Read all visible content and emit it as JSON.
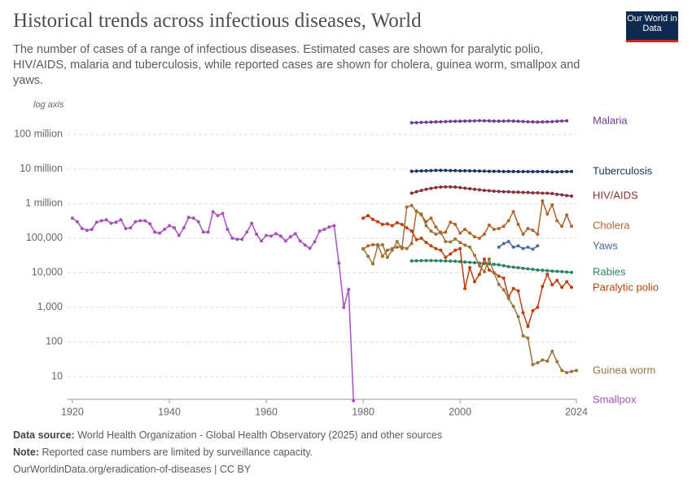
{
  "logo": "Our World in Data",
  "footer": {
    "source_label": "Data source:",
    "source_text": "World Health Organization - Global Health Observatory (2025) and other sources",
    "note_label": "Note:",
    "note_text": "Reported case numbers are limited by surveillance capacity.",
    "url": "OurWorldinData.org/eradication-of-diseases | CC BY"
  },
  "chart_data": {
    "type": "line",
    "title": "Historical trends across infectious diseases, World",
    "subtitle": "The number of cases of a range of infectious diseases. Estimated cases are shown for paralytic polio, HIV/AIDS, malaria and tuberculosis, while reported cases are shown for cholera, guinea worm, smallpox and yaws.",
    "axis_note": "log axis",
    "log_y": true,
    "grid": true,
    "xlim": [
      1919,
      2024
    ],
    "xticks": [
      1920,
      1940,
      1960,
      1980,
      2000,
      2024
    ],
    "ylim": [
      1.5,
      300000000
    ],
    "yticks": [
      10,
      100,
      {
        "value": 1000,
        "label": "1,000"
      },
      {
        "value": 10000,
        "label": "10,000"
      },
      {
        "value": 100000,
        "label": "100,000"
      },
      {
        "value": 1000000,
        "label": "1 million"
      },
      {
        "value": 10000000,
        "label": "10 million"
      },
      {
        "value": 100000000,
        "label": "100 million"
      }
    ],
    "series": [
      {
        "name": "Malaria",
        "color": "#6d3e91",
        "x": [
          1990,
          1991,
          1992,
          1993,
          1994,
          1995,
          1996,
          1997,
          1998,
          1999,
          2000,
          2001,
          2002,
          2003,
          2004,
          2005,
          2006,
          2007,
          2008,
          2009,
          2010,
          2011,
          2012,
          2013,
          2014,
          2015,
          2016,
          2017,
          2018,
          2019,
          2020,
          2021,
          2022
        ],
        "values": [
          218000000,
          220000000,
          222000000,
          225000000,
          228000000,
          230000000,
          232000000,
          235000000,
          238000000,
          240000000,
          242000000,
          243000000,
          245000000,
          247000000,
          250000000,
          248000000,
          246000000,
          244000000,
          242000000,
          244000000,
          246000000,
          243000000,
          240000000,
          236000000,
          232000000,
          230000000,
          228000000,
          230000000,
          232000000,
          233000000,
          240000000,
          245000000,
          249000000
        ]
      },
      {
        "name": "Tuberculosis",
        "color": "#18375f",
        "x": [
          1990,
          1991,
          1992,
          1993,
          1994,
          1995,
          1996,
          1997,
          1998,
          1999,
          2000,
          2001,
          2002,
          2003,
          2004,
          2005,
          2006,
          2007,
          2008,
          2009,
          2010,
          2011,
          2012,
          2013,
          2014,
          2015,
          2016,
          2017,
          2018,
          2019,
          2020,
          2021,
          2022,
          2023
        ],
        "values": [
          8600000,
          8700000,
          8800000,
          8900000,
          9000000,
          9100000,
          9100000,
          9100000,
          9000000,
          9000000,
          8900000,
          8900000,
          8800000,
          8800000,
          8700000,
          8700000,
          8600000,
          8600000,
          8600000,
          8500000,
          8500000,
          8500000,
          8400000,
          8400000,
          8400000,
          8400000,
          8400000,
          8400000,
          8400000,
          8300000,
          8300000,
          8400000,
          8500000,
          8500000
        ]
      },
      {
        "name": "HIV/AIDS",
        "color": "#883039",
        "x": [
          1990,
          1991,
          1992,
          1993,
          1994,
          1995,
          1996,
          1997,
          1998,
          1999,
          2000,
          2001,
          2002,
          2003,
          2004,
          2005,
          2006,
          2007,
          2008,
          2009,
          2010,
          2011,
          2012,
          2013,
          2014,
          2015,
          2016,
          2017,
          2018,
          2019,
          2020,
          2021,
          2022,
          2023
        ],
        "values": [
          2000000,
          2200000,
          2400000,
          2600000,
          2750000,
          2900000,
          3000000,
          3050000,
          3050000,
          3000000,
          2900000,
          2800000,
          2700000,
          2600000,
          2500000,
          2400000,
          2350000,
          2300000,
          2250000,
          2200000,
          2200000,
          2150000,
          2150000,
          2100000,
          2100000,
          2050000,
          2050000,
          2000000,
          2000000,
          1950000,
          1850000,
          1800000,
          1700000,
          1650000
        ]
      },
      {
        "name": "Cholera",
        "color": "#b1642c",
        "x": [
          1980,
          1981,
          1982,
          1983,
          1984,
          1985,
          1986,
          1987,
          1988,
          1989,
          1990,
          1991,
          1992,
          1993,
          1994,
          1995,
          1996,
          1997,
          1998,
          1999,
          2000,
          2001,
          2002,
          2003,
          2004,
          2005,
          2006,
          2007,
          2008,
          2009,
          2010,
          2011,
          2012,
          2013,
          2014,
          2015,
          2016,
          2017,
          2018,
          2019,
          2020,
          2021,
          2022,
          2023
        ],
        "values": [
          48000,
          60000,
          65000,
          65000,
          30000,
          45000,
          50000,
          55000,
          55000,
          50000,
          70000,
          600000,
          470000,
          300000,
          380000,
          210000,
          140000,
          150000,
          290000,
          250000,
          140000,
          180000,
          140000,
          110000,
          100000,
          130000,
          240000,
          180000,
          190000,
          220000,
          320000,
          590000,
          250000,
          130000,
          190000,
          170000,
          130000,
          1200000,
          500000,
          920000,
          320000,
          220000,
          470000,
          220000
        ]
      },
      {
        "name": "Yaws",
        "color": "#4c6a9c",
        "x": [
          2008,
          2009,
          2010,
          2011,
          2012,
          2013,
          2014,
          2015,
          2016
        ],
        "values": [
          55000,
          70000,
          80000,
          55000,
          60000,
          50000,
          55000,
          48000,
          60000
        ]
      },
      {
        "name": "Rabies",
        "color": "#2c8465",
        "x": [
          1990,
          1991,
          1992,
          1993,
          1994,
          1995,
          1996,
          1997,
          1998,
          1999,
          2000,
          2001,
          2002,
          2003,
          2004,
          2005,
          2006,
          2007,
          2008,
          2009,
          2010,
          2011,
          2012,
          2013,
          2014,
          2015,
          2016,
          2017,
          2018,
          2019,
          2020,
          2021,
          2022,
          2023
        ],
        "values": [
          22000,
          22200,
          22400,
          22500,
          22500,
          22400,
          22200,
          22000,
          21800,
          21500,
          21000,
          20500,
          20000,
          19500,
          19000,
          18500,
          18000,
          17500,
          17000,
          16000,
          15000,
          14500,
          14000,
          13500,
          13000,
          12500,
          12000,
          11800,
          11500,
          11200,
          11000,
          10800,
          10500,
          10300
        ]
      },
      {
        "name": "Paralytic polio",
        "color": "#be3f0e",
        "x": [
          1980,
          1981,
          1982,
          1983,
          1984,
          1985,
          1986,
          1987,
          1988,
          1989,
          1990,
          1991,
          1992,
          1993,
          1994,
          1995,
          1996,
          1997,
          1998,
          1999,
          2000,
          2001,
          2002,
          2003,
          2004,
          2005,
          2006,
          2007,
          2008,
          2009,
          2010,
          2011,
          2012,
          2013,
          2014,
          2015,
          2016,
          2017,
          2018,
          2019,
          2020,
          2021,
          2022,
          2023
        ],
        "values": [
          380000,
          450000,
          350000,
          300000,
          250000,
          260000,
          230000,
          280000,
          250000,
          200000,
          160000,
          90000,
          100000,
          75000,
          60000,
          50000,
          45000,
          28000,
          35000,
          45000,
          50000,
          3500,
          14000,
          5500,
          9000,
          25000,
          12000,
          10000,
          8000,
          7000,
          2000,
          3500,
          3000,
          700,
          280,
          800,
          1000,
          4000,
          9000,
          4500,
          6000,
          3800,
          5500,
          3800
        ]
      },
      {
        "name": "Guinea worm",
        "color": "#9a7539",
        "x": [
          1980,
          1981,
          1982,
          1983,
          1984,
          1985,
          1986,
          1987,
          1988,
          1989,
          1990,
          1991,
          1992,
          1993,
          1994,
          1995,
          1996,
          1997,
          1998,
          1999,
          2000,
          2001,
          2002,
          2003,
          2004,
          2005,
          2006,
          2007,
          2008,
          2009,
          2010,
          2011,
          2012,
          2013,
          2014,
          2015,
          2016,
          2017,
          2018,
          2019,
          2020,
          2021,
          2022,
          2023,
          2024
        ],
        "values": [
          50000,
          30000,
          18000,
          60000,
          65000,
          28000,
          45000,
          80000,
          50000,
          800000,
          880000,
          600000,
          500000,
          230000,
          160000,
          130000,
          150000,
          80000,
          78000,
          95000,
          75000,
          63000,
          55000,
          32000,
          16000,
          10700,
          25000,
          10000,
          4600,
          3200,
          1800,
          1060,
          540,
          150,
          130,
          22,
          25,
          30,
          28,
          54,
          27,
          15,
          13,
          14,
          15
        ]
      },
      {
        "name": "Smallpox",
        "color": "#a652ba",
        "x": [
          1920,
          1921,
          1922,
          1923,
          1924,
          1925,
          1926,
          1927,
          1928,
          1929,
          1930,
          1931,
          1932,
          1933,
          1934,
          1935,
          1936,
          1937,
          1938,
          1939,
          1940,
          1941,
          1942,
          1943,
          1944,
          1945,
          1946,
          1947,
          1948,
          1949,
          1950,
          1951,
          1952,
          1953,
          1954,
          1955,
          1956,
          1957,
          1958,
          1959,
          1960,
          1961,
          1962,
          1963,
          1964,
          1965,
          1966,
          1967,
          1968,
          1969,
          1970,
          1971,
          1972,
          1973,
          1974,
          1975,
          1976,
          1977,
          1978
        ],
        "values": [
          380000,
          300000,
          190000,
          170000,
          180000,
          290000,
          320000,
          340000,
          270000,
          290000,
          340000,
          190000,
          200000,
          300000,
          320000,
          320000,
          260000,
          150000,
          140000,
          180000,
          230000,
          200000,
          120000,
          200000,
          400000,
          380000,
          300000,
          150000,
          150000,
          580000,
          450000,
          520000,
          180000,
          100000,
          93000,
          93000,
          150000,
          270000,
          130000,
          83000,
          120000,
          115000,
          135000,
          115000,
          83000,
          110000,
          135000,
          83000,
          63000,
          51000,
          79000,
          160000,
          180000,
          210000,
          230000,
          19000,
          1000,
          3300,
          2
        ]
      }
    ]
  }
}
